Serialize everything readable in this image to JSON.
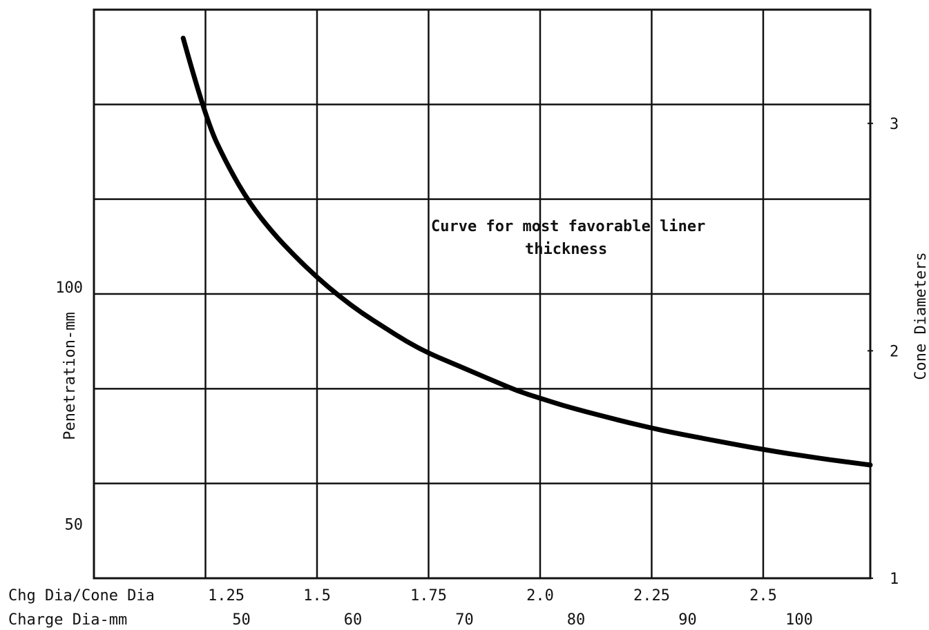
{
  "chart_data": {
    "type": "line",
    "title": "",
    "ylabel": "Penetration-mm",
    "ylabel_right": "Cone Diameters",
    "x_axis_rows": [
      {
        "label": "Chg Dia/Cone Dia",
        "ticks": [
          "1.25",
          "1.5",
          "1.75",
          "2.0",
          "2.25",
          "2.5"
        ]
      },
      {
        "label": "Charge Dia-mm",
        "ticks": [
          "50",
          "60",
          "70",
          "80",
          "90",
          "100"
        ]
      }
    ],
    "xlim": [
      1.0,
      2.74
    ],
    "ylim": [
      40,
      160
    ],
    "y_ticks_left": [
      "100",
      "50"
    ],
    "y_ticks_left_values": [
      100,
      50
    ],
    "y_ticks_right": [
      "3",
      "2",
      "1"
    ],
    "y_ticks_right_values": [
      3,
      2,
      1
    ],
    "right_axis_ylim": [
      1,
      3.5
    ],
    "grid": true,
    "annotation": "Curve for most favorable liner thickness",
    "series": [
      {
        "x": [
          1.2,
          1.25,
          1.3,
          1.35,
          1.4,
          1.45,
          1.5,
          1.55,
          1.6,
          1.65,
          1.7,
          1.75,
          1.8,
          1.85,
          1.9,
          1.95,
          2.0,
          2.05,
          2.1,
          2.15,
          2.2,
          2.25,
          2.3,
          2.35,
          2.4,
          2.45,
          2.5,
          2.55,
          2.6,
          2.65,
          2.7,
          2.74
        ],
        "y": [
          154,
          137,
          127,
          119,
          113,
          108,
          103.5,
          99.5,
          96,
          93,
          90,
          87.5,
          85.5,
          83.5,
          81.5,
          79.5,
          78,
          76.5,
          75.2,
          74,
          72.8,
          71.7,
          70.7,
          69.8,
          68.9,
          68,
          67.2,
          66.4,
          65.7,
          65,
          64.4,
          63.9
        ]
      }
    ]
  }
}
